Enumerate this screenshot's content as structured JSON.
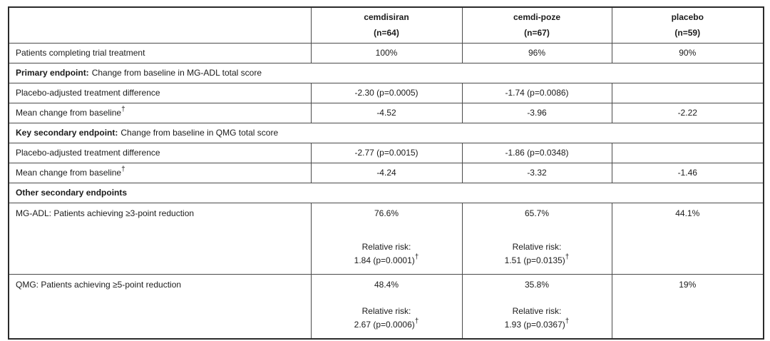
{
  "header": {
    "col0": "",
    "cols": [
      {
        "name": "cemdisiran",
        "n": "(n=64)"
      },
      {
        "name": "cemdi-poze",
        "n": "(n=67)"
      },
      {
        "name": "placebo",
        "n": "(n=59)"
      }
    ]
  },
  "rows": {
    "completing": {
      "label": "Patients completing trial treatment",
      "v1": "100%",
      "v2": "96%",
      "v3": "90%"
    },
    "primary_section": {
      "bold": "Primary endpoint:",
      "text": "Change from baseline in MG-ADL total score"
    },
    "mgadl_diff": {
      "label": "Placebo-adjusted treatment difference",
      "v1": "-2.30 (p=0.0005)",
      "v2": "-1.74 (p=0.0086)",
      "v3": ""
    },
    "mgadl_mean": {
      "label": "Mean change from baseline",
      "dagger": "†",
      "v1": "-4.52",
      "v2": "-3.96",
      "v3": "-2.22"
    },
    "secondary_section": {
      "bold": "Key secondary endpoint:",
      "text": "Change from baseline in QMG total score"
    },
    "qmg_diff": {
      "label": "Placebo-adjusted treatment difference",
      "v1": "-2.77 (p=0.0015)",
      "v2": "-1.86 (p=0.0348)",
      "v3": ""
    },
    "qmg_mean": {
      "label": "Mean change from baseline",
      "dagger": "†",
      "v1": "-4.24",
      "v2": "-3.32",
      "v3": "-1.46"
    },
    "other_section": {
      "bold": "Other secondary endpoints",
      "text": ""
    },
    "mgadl_responders": {
      "label": "MG-ADL: Patients achieving ≥3-point reduction",
      "c1": {
        "pct": "76.6%",
        "rr_label": "Relative risk:",
        "rr": "1.84 (p=0.0001)",
        "dagger": "†"
      },
      "c2": {
        "pct": "65.7%",
        "rr_label": "Relative risk:",
        "rr": "1.51 (p=0.0135)",
        "dagger": "†"
      },
      "c3": {
        "pct": "44.1%"
      }
    },
    "qmg_responders": {
      "label": "QMG: Patients achieving ≥5-point reduction",
      "c1": {
        "pct": "48.4%",
        "rr_label": "Relative risk:",
        "rr": "2.67 (p=0.0006)",
        "dagger": "†"
      },
      "c2": {
        "pct": "35.8%",
        "rr_label": "Relative risk:",
        "rr": "1.93 (p=0.0367)",
        "dagger": "†"
      },
      "c3": {
        "pct": "19%"
      }
    }
  }
}
